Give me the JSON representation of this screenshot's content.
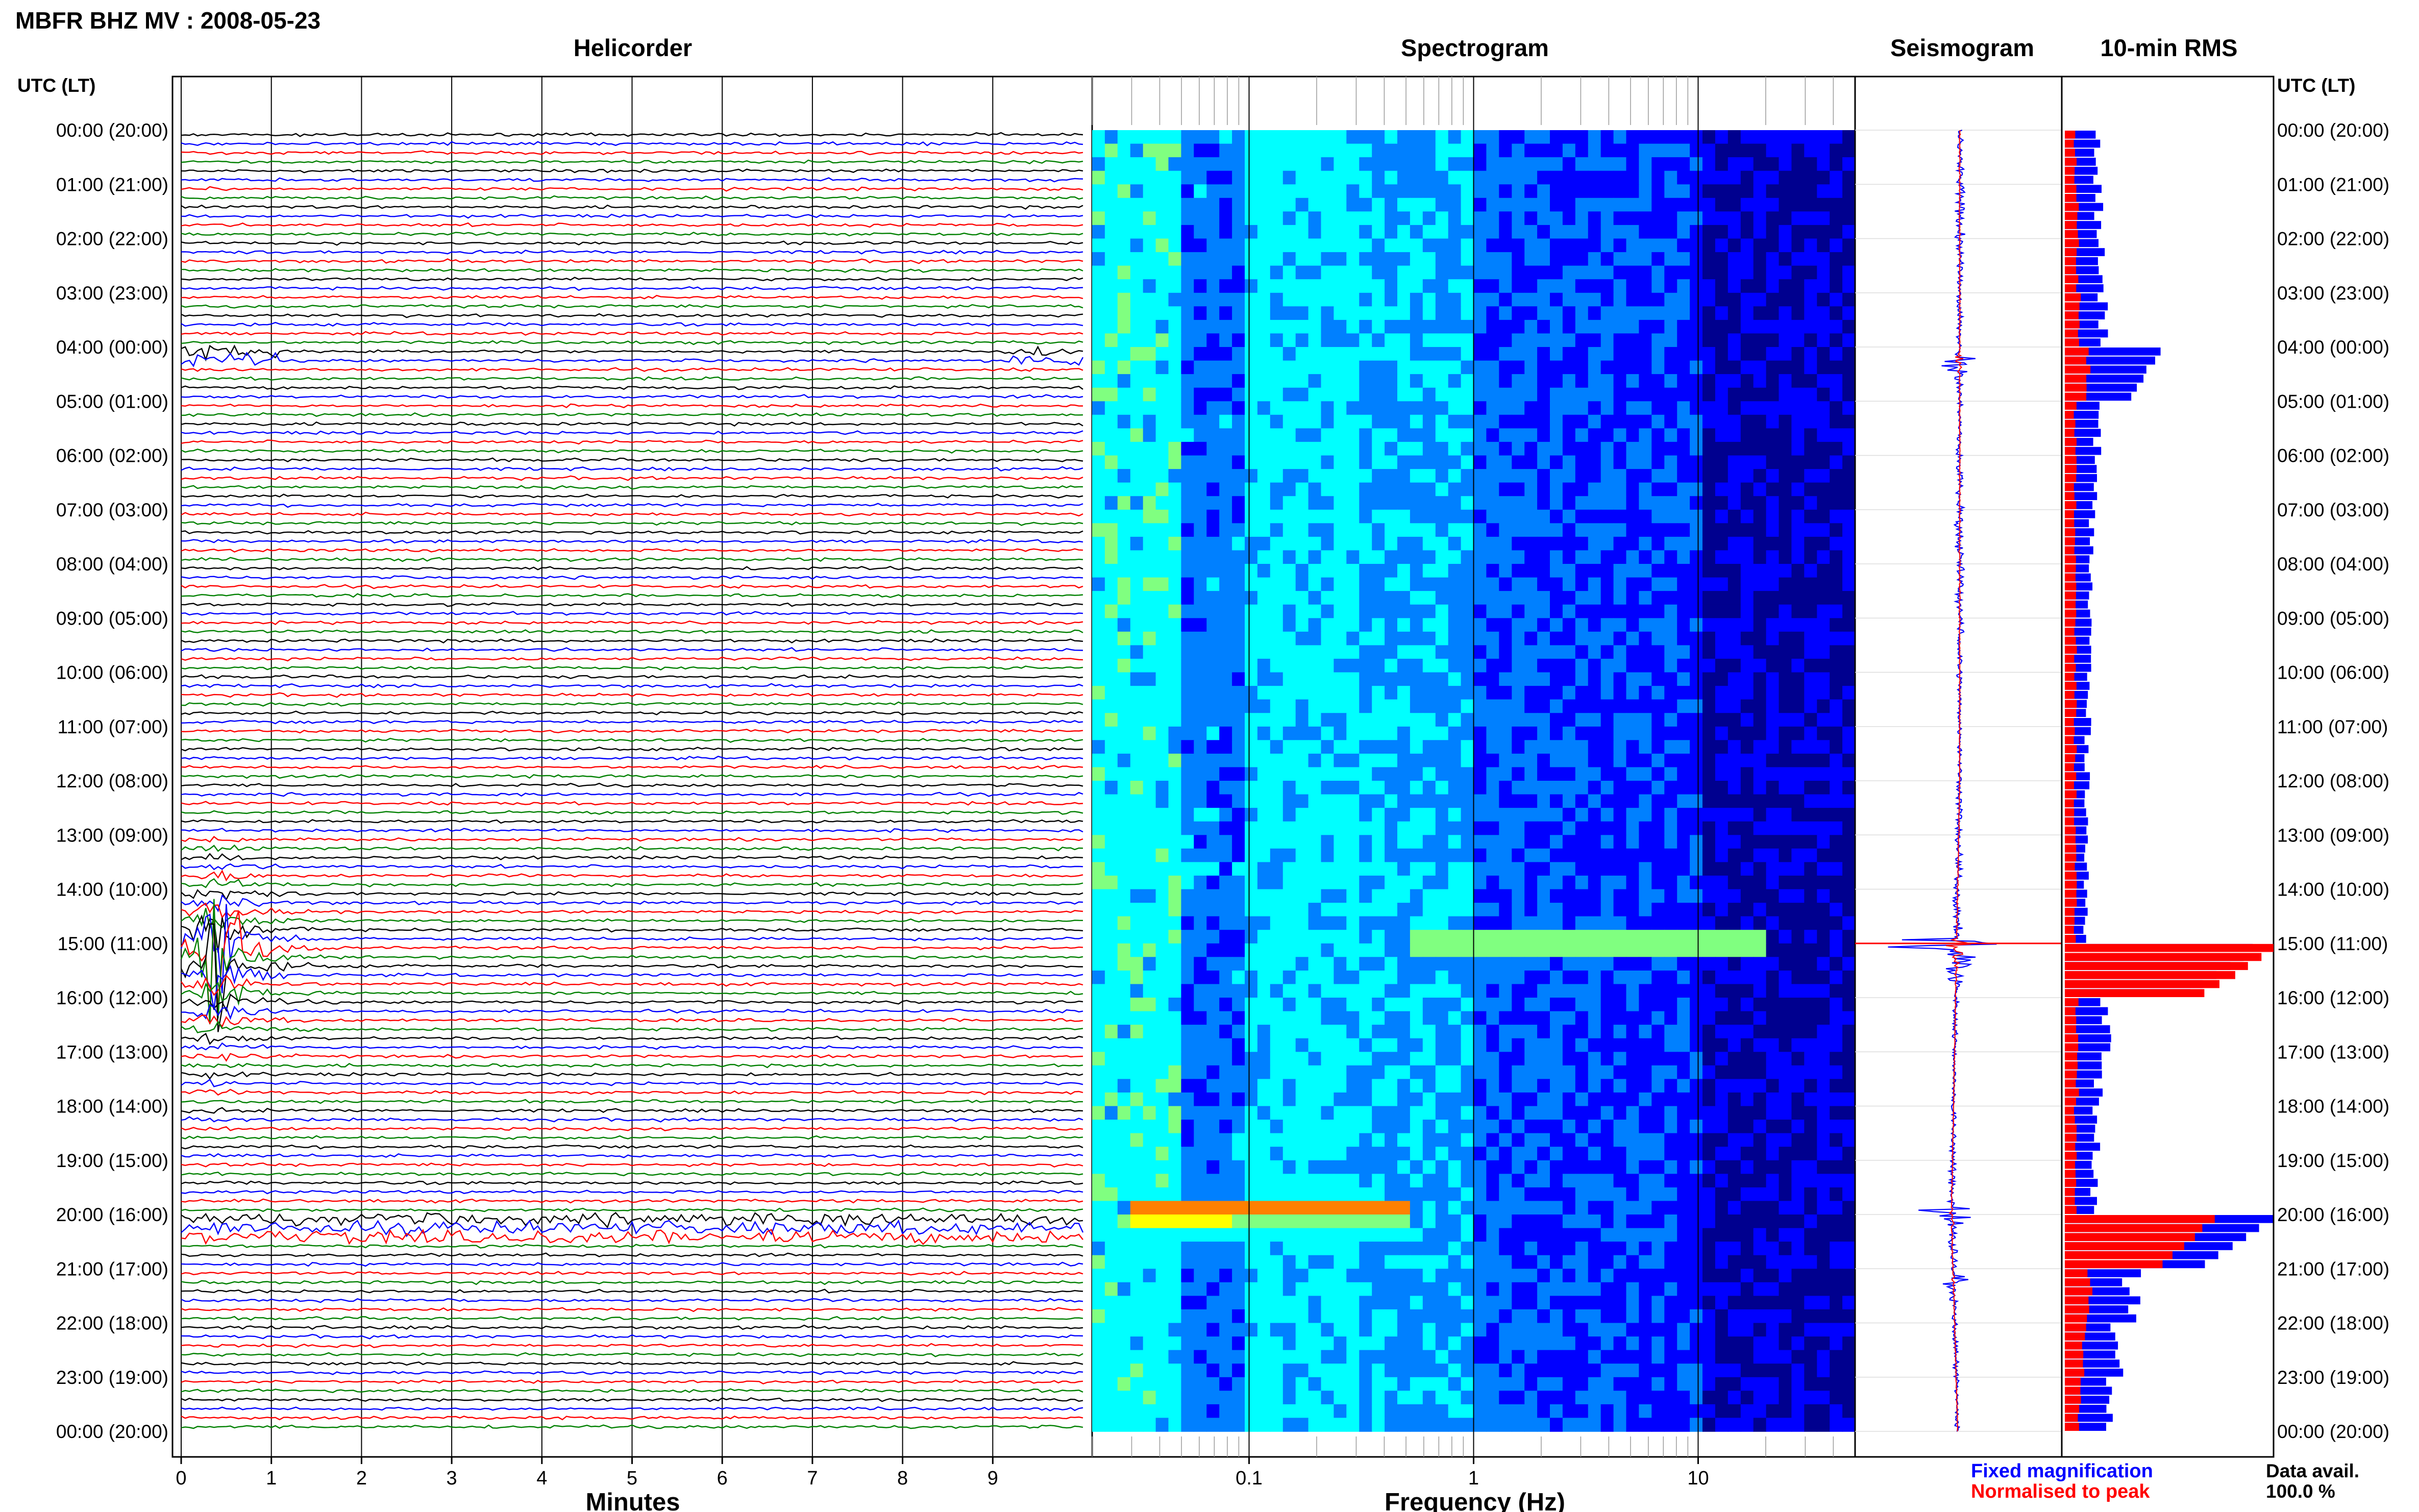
{
  "title": "MBFR BHZ MV : 2008-05-23",
  "panels": {
    "helicorder": "Helicorder",
    "spectrogram": "Spectrogram",
    "seismogram": "Seismogram",
    "rms": "10-min RMS"
  },
  "time_header": "UTC (LT)",
  "legend": {
    "fixed": "Fixed magnification",
    "normalised": "Normalised to peak",
    "fixed_color": "#0000ff",
    "normalised_color": "#ff0000",
    "data_avail_label": "Data avail.",
    "data_avail_value": "100.0 %"
  },
  "chart_data": [
    {
      "type": "line",
      "name": "helicorder",
      "title": "Helicorder",
      "xlabel": "Minutes",
      "xlim": [
        0,
        10
      ],
      "xticks": [
        "0",
        "1",
        "2",
        "3",
        "4",
        "5",
        "6",
        "7",
        "8",
        "9"
      ],
      "rows_per_hour": 6,
      "row_minutes": 10,
      "trace_colors": [
        "#000000",
        "#0000ff",
        "#ff0000",
        "#008000"
      ],
      "ytick_labels": [
        "00:00 (20:00)",
        "01:00 (21:00)",
        "02:00 (22:00)",
        "03:00 (23:00)",
        "04:00 (00:00)",
        "05:00 (01:00)",
        "06:00 (02:00)",
        "07:00 (03:00)",
        "08:00 (04:00)",
        "09:00 (05:00)",
        "10:00 (06:00)",
        "11:00 (07:00)",
        "12:00 (08:00)",
        "13:00 (09:00)",
        "14:00 (10:00)",
        "15:00 (11:00)",
        "16:00 (12:00)",
        "17:00 (13:00)",
        "18:00 (14:00)",
        "19:00 (15:00)",
        "20:00 (16:00)",
        "21:00 (17:00)",
        "22:00 (18:00)",
        "23:00 (19:00)",
        "00:00 (20:00)"
      ],
      "events": [
        {
          "start_hour": 15.0,
          "minute": 0.4,
          "peak": 1.0
        },
        {
          "start_hour": 4.1,
          "minute": 0.4,
          "peak": 0.15
        },
        {
          "start_hour": 4.1,
          "minute": 9.8,
          "peak": 0.1
        },
        {
          "start_hour": 19.9,
          "minute": 5.0,
          "peak": 0.3
        }
      ]
    },
    {
      "type": "heatmap",
      "name": "spectrogram",
      "title": "Spectrogram",
      "xlabel": "Frequency (Hz)",
      "xscale": "log",
      "xlim": [
        0.02,
        50
      ],
      "xticks": [
        {
          "value": 0.1,
          "label": "0.1"
        },
        {
          "value": 1,
          "label": "1"
        },
        {
          "value": 10,
          "label": "10"
        }
      ],
      "hours": 24,
      "colormap": [
        "#00008f",
        "#0000ff",
        "#0080ff",
        "#00ffff",
        "#80ff80",
        "#ffff00",
        "#ff8000",
        "#ff0000"
      ],
      "features": [
        {
          "hour": 19.8,
          "fmin": 0.03,
          "fmax": 0.5,
          "level": 0.95
        },
        {
          "hour": 15.0,
          "fmin": 0.5,
          "fmax": 20,
          "level": 0.6
        }
      ]
    },
    {
      "type": "line",
      "name": "seismogram",
      "title": "Seismogram",
      "hours": 24,
      "series": [
        {
          "name": "Fixed magnification",
          "color": "#0000ff"
        },
        {
          "name": "Normalised to peak",
          "color": "#ff0000"
        }
      ],
      "events": [
        {
          "hour": 4.2,
          "amp": 0.3
        },
        {
          "hour": 15.0,
          "amp": 1.0
        },
        {
          "hour": 19.95,
          "amp": 0.35
        },
        {
          "hour": 21.2,
          "amp": 0.1
        }
      ]
    },
    {
      "type": "bar",
      "name": "rms",
      "title": "10-min RMS",
      "orientation": "horizontal",
      "bin_minutes": 10,
      "hours": 24,
      "xlim": [
        0,
        1
      ],
      "series": [
        {
          "name": "Fixed magnification",
          "color": "#0000ff",
          "hourly": [
            0.15,
            0.16,
            0.17,
            0.18,
            0.45,
            0.16,
            0.14,
            0.13,
            0.12,
            0.12,
            0.11,
            0.11,
            0.11,
            0.1,
            0.1,
            0.9,
            0.2,
            0.16,
            0.15,
            0.14,
            0.98,
            0.32,
            0.25,
            0.2
          ]
        },
        {
          "name": "Normalised to peak",
          "color": "#ff0000",
          "hourly": [
            0.05,
            0.06,
            0.06,
            0.07,
            0.12,
            0.05,
            0.05,
            0.05,
            0.05,
            0.05,
            0.05,
            0.05,
            0.05,
            0.05,
            0.05,
            1.0,
            0.06,
            0.06,
            0.05,
            0.05,
            0.7,
            0.12,
            0.09,
            0.07
          ]
        }
      ]
    }
  ]
}
